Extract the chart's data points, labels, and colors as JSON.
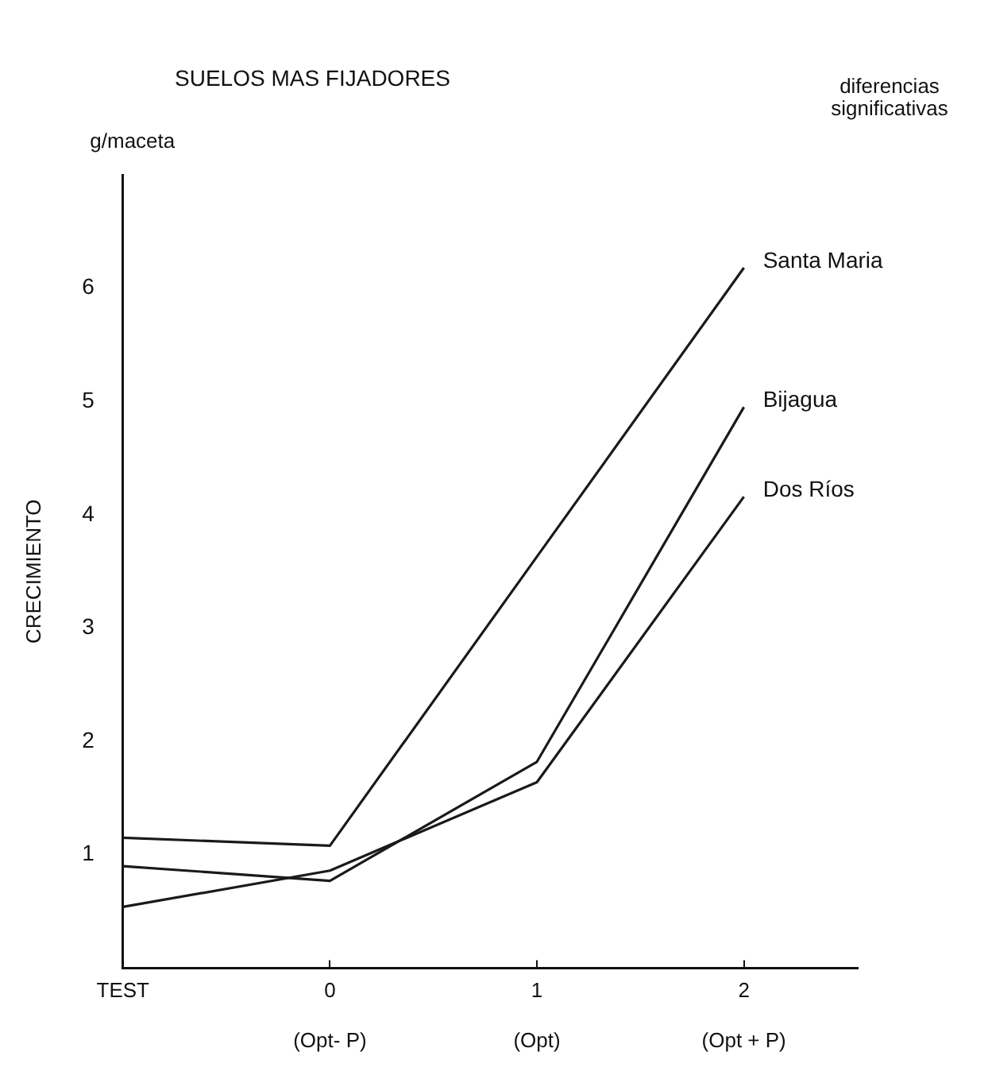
{
  "chart_data": {
    "type": "line",
    "title": "SUELOS MAS FIJADORES",
    "ylabel": "CRECIMIENTO",
    "annotations": [
      "g/maceta",
      "diferencias\nsignificativas"
    ],
    "categories": [
      "TEST",
      "0\n\n(Opt- P)",
      "1\n\n(Opt)",
      "2\n\n(Opt + P)"
    ],
    "series": [
      {
        "name": "Santa Maria",
        "color": "#1a1a1a",
        "values": [
          1.15,
          1.08,
          3.63,
          6.18
        ]
      },
      {
        "name": "Bijagua",
        "color": "#1a1a1a",
        "values": [
          0.9,
          0.77,
          1.82,
          4.95
        ]
      },
      {
        "name": "Dos Ríos",
        "color": "#1a1a1a",
        "values": [
          0.54,
          0.86,
          1.64,
          4.16
        ]
      }
    ],
    "ylim": [
      0,
      7
    ],
    "yticks": [
      1,
      2,
      3,
      4,
      5,
      6
    ],
    "grid": false,
    "legend": false,
    "marker": "none",
    "line_style": "solid"
  }
}
